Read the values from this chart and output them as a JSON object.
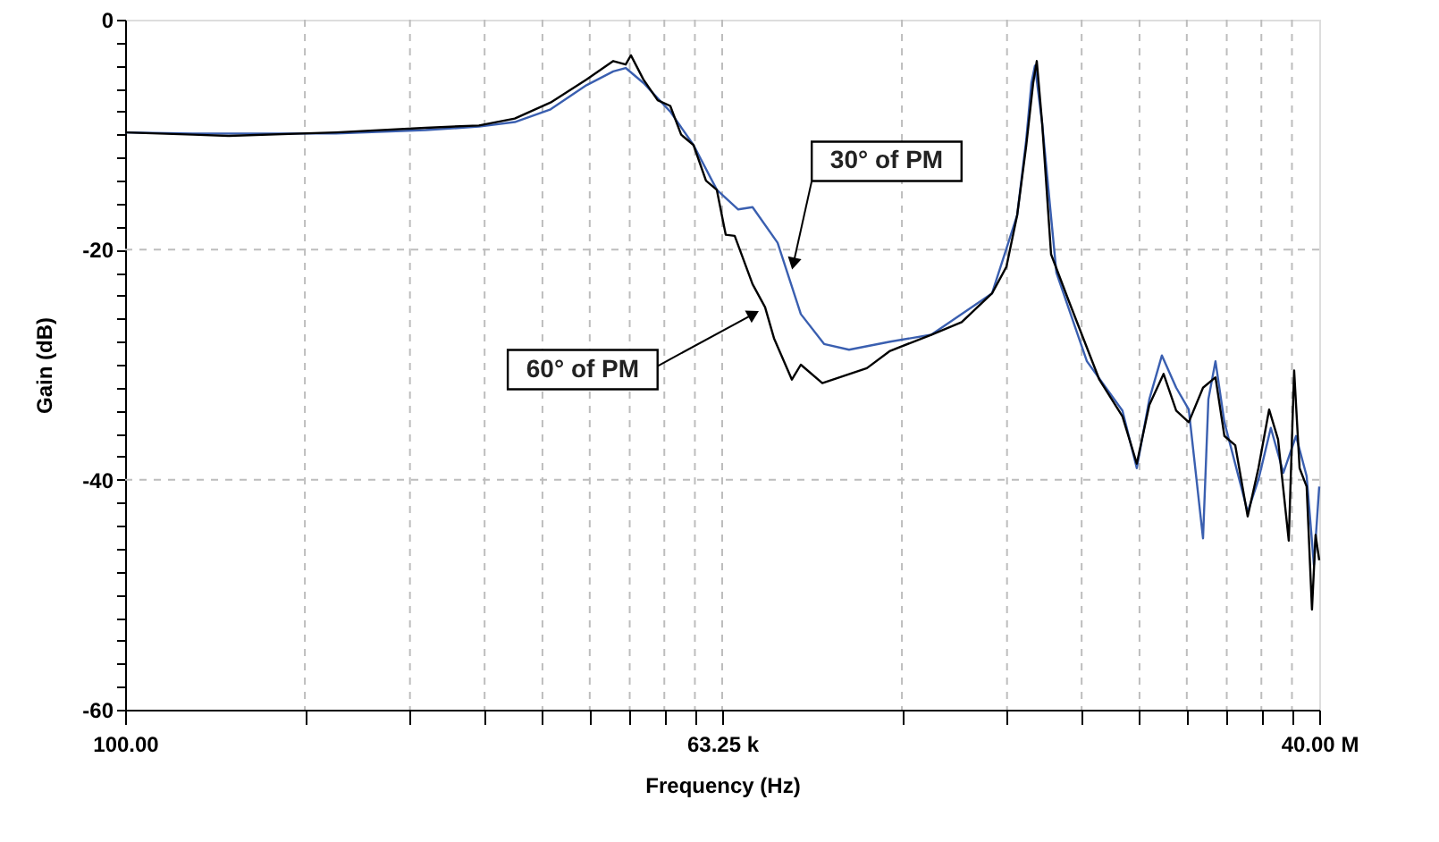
{
  "chart_data": {
    "type": "line",
    "xlabel": "Frequency (Hz)",
    "ylabel": "Gain (dB)",
    "log": "x",
    "grid": true,
    "marker": "none",
    "line_style": "solid",
    "xlim": [
      100,
      40000000
    ],
    "ylim": [
      -60,
      0
    ],
    "xticks": [
      {
        "value": 100,
        "label": "100.00"
      },
      {
        "value": 697,
        "label": null
      },
      {
        "value": 2169,
        "label": null
      },
      {
        "value": 4858,
        "label": null
      },
      {
        "value": 9074,
        "label": null
      },
      {
        "value": 15124,
        "label": null
      },
      {
        "value": 23290,
        "label": null
      },
      {
        "value": 33850,
        "label": null
      },
      {
        "value": 47100,
        "label": null
      },
      {
        "value": 63250,
        "label": "63.25 k"
      },
      {
        "value": 440800,
        "label": null
      },
      {
        "value": 1372000,
        "label": null
      },
      {
        "value": 3072000,
        "label": null
      },
      {
        "value": 5739000,
        "label": null
      },
      {
        "value": 9566000,
        "label": null
      },
      {
        "value": 14730000,
        "label": null
      },
      {
        "value": 21410000,
        "label": null
      },
      {
        "value": 29790000,
        "label": null
      },
      {
        "value": 40000000,
        "label": "40.00 M"
      }
    ],
    "yticks": [
      0,
      {
        "value": -2,
        "label": null
      },
      {
        "value": -4,
        "label": null
      },
      {
        "value": -6,
        "label": null
      },
      {
        "value": -8,
        "label": null
      },
      {
        "value": -10,
        "label": null
      },
      {
        "value": -12,
        "label": null
      },
      {
        "value": -14,
        "label": null
      },
      {
        "value": -16,
        "label": null
      },
      {
        "value": -18,
        "label": null
      },
      -20,
      {
        "value": -22,
        "label": null
      },
      {
        "value": -24,
        "label": null
      },
      {
        "value": -26,
        "label": null
      },
      {
        "value": -28,
        "label": null
      },
      {
        "value": -30,
        "label": null
      },
      {
        "value": -32,
        "label": null
      },
      {
        "value": -34,
        "label": null
      },
      {
        "value": -36,
        "label": null
      },
      {
        "value": -38,
        "label": null
      },
      -40,
      {
        "value": -42,
        "label": null
      },
      {
        "value": -44,
        "label": null
      },
      {
        "value": -46,
        "label": null
      },
      {
        "value": -48,
        "label": null
      },
      {
        "value": -50,
        "label": null
      },
      {
        "value": -52,
        "label": null
      },
      {
        "value": -54,
        "label": null
      },
      {
        "value": -56,
        "label": null
      },
      {
        "value": -58,
        "label": null
      },
      -60
    ],
    "series": [
      {
        "color": "#3a5fb0",
        "x": [
          100,
          208,
          977,
          2570,
          4570,
          6730,
          9910,
          14600,
          19500,
          22300,
          27000,
          36100,
          46400,
          59700,
          75200,
          87800,
          115100,
          147900,
          190100,
          249000,
          388000,
          605000,
          1167000,
          1531000,
          1687000,
          1786000,
          1855000,
          2005000,
          2339000,
          3251000,
          4775000,
          5573000,
          6383000,
          7311000,
          8531000,
          9772000,
          11400000,
          12080000,
          13040000,
          14360000,
          18470000,
          20740000,
          23710000,
          27160000,
          31120000,
          34920000,
          37760000,
          40000000
        ],
        "values": [
          -9.8,
          -9.9,
          -9.9,
          -9.6,
          -9.3,
          -8.9,
          -7.8,
          -5.7,
          -4.5,
          -4.2,
          -5.5,
          -8,
          -10.9,
          -14.8,
          -16.5,
          -16.3,
          -19.4,
          -25.6,
          -28.2,
          -28.7,
          -28,
          -27.4,
          -23.8,
          -17,
          -10.5,
          -5.5,
          -4,
          -9,
          -22,
          -29.7,
          -34,
          -39,
          -33,
          -29.2,
          -32,
          -33.9,
          -45.1,
          -33,
          -29.7,
          -35,
          -42.8,
          -40,
          -35.5,
          -39.4,
          -36.2,
          -39.7,
          -47.4,
          -40.6
        ]
      },
      {
        "color": "#000000",
        "x": [
          100,
          208,
          306,
          977,
          2570,
          4570,
          6730,
          9910,
          14600,
          19500,
          22300,
          23600,
          27000,
          31500,
          36100,
          40600,
          46400,
          53100,
          59700,
          65700,
          72400,
          87800,
          100500,
          110700,
          134300,
          147900,
          186600,
          302000,
          388000,
          605000,
          841000,
          1167000,
          1362000,
          1531000,
          1687000,
          1820000,
          1892000,
          2005000,
          2208000,
          2679000,
          3719000,
          4775000,
          5573000,
          6383000,
          7447000,
          8531000,
          9772000,
          11400000,
          13040000,
          14360000,
          16140000,
          18470000,
          20740000,
          23280000,
          25640000,
          28780000,
          30500000,
          32350000,
          34920000,
          36990000,
          38460000,
          40000000
        ],
        "values": [
          -9.8,
          -10,
          -10.1,
          -9.8,
          -9.4,
          -9.2,
          -8.6,
          -7.2,
          -5.2,
          -3.6,
          -3.9,
          -3.1,
          -5.2,
          -7,
          -7.5,
          -10,
          -10.9,
          -14,
          -14.8,
          -18.7,
          -18.8,
          -23,
          -25,
          -27.7,
          -31.3,
          -30,
          -31.6,
          -30.3,
          -28.8,
          -27.4,
          -26.3,
          -23.8,
          -21.5,
          -17,
          -11,
          -5.5,
          -3.6,
          -9,
          -20.4,
          -24.5,
          -31.3,
          -34.5,
          -38.6,
          -33.5,
          -30.8,
          -34,
          -35,
          -32,
          -31.1,
          -36.2,
          -37,
          -43.2,
          -39,
          -33.9,
          -36.5,
          -45.3,
          -30.5,
          -39,
          -40.6,
          -51.3,
          -44.8,
          -47
        ]
      }
    ],
    "annotations": [
      {
        "text": "30° of PM",
        "x": 134300,
        "y": -21.8
      },
      {
        "text": "60° of PM",
        "x": 94800,
        "y": -25.3
      }
    ]
  }
}
